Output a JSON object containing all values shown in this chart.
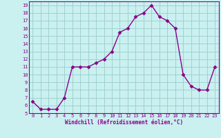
{
  "x": [
    0,
    1,
    2,
    3,
    4,
    5,
    6,
    7,
    8,
    9,
    10,
    11,
    12,
    13,
    14,
    15,
    16,
    17,
    18,
    19,
    20,
    21,
    22,
    23
  ],
  "y": [
    6.5,
    5.5,
    5.5,
    5.5,
    7.0,
    11.0,
    11.0,
    11.0,
    11.5,
    12.0,
    13.0,
    15.5,
    16.0,
    17.5,
    18.0,
    19.0,
    17.5,
    17.0,
    16.0,
    10.0,
    8.5,
    8.0,
    8.0,
    11.0
  ],
  "line_color": "#880088",
  "marker": "D",
  "marker_size": 2.5,
  "bg_color": "#caf0f0",
  "grid_color": "#99cccc",
  "xlabel": "Windchill (Refroidissement éolien,°C)",
  "xlabel_color": "#880088",
  "tick_color": "#880088",
  "ylim": [
    5,
    19.5
  ],
  "yticks": [
    5,
    6,
    7,
    8,
    9,
    10,
    11,
    12,
    13,
    14,
    15,
    16,
    17,
    18,
    19
  ],
  "xlim": [
    -0.5,
    23.5
  ],
  "xticks": [
    0,
    1,
    2,
    3,
    4,
    5,
    6,
    7,
    8,
    9,
    10,
    11,
    12,
    13,
    14,
    15,
    16,
    17,
    18,
    19,
    20,
    21,
    22,
    23
  ],
  "axis_color": "#880088",
  "tick_fontsize": 5.0,
  "xlabel_fontsize": 5.5,
  "linewidth": 1.0
}
